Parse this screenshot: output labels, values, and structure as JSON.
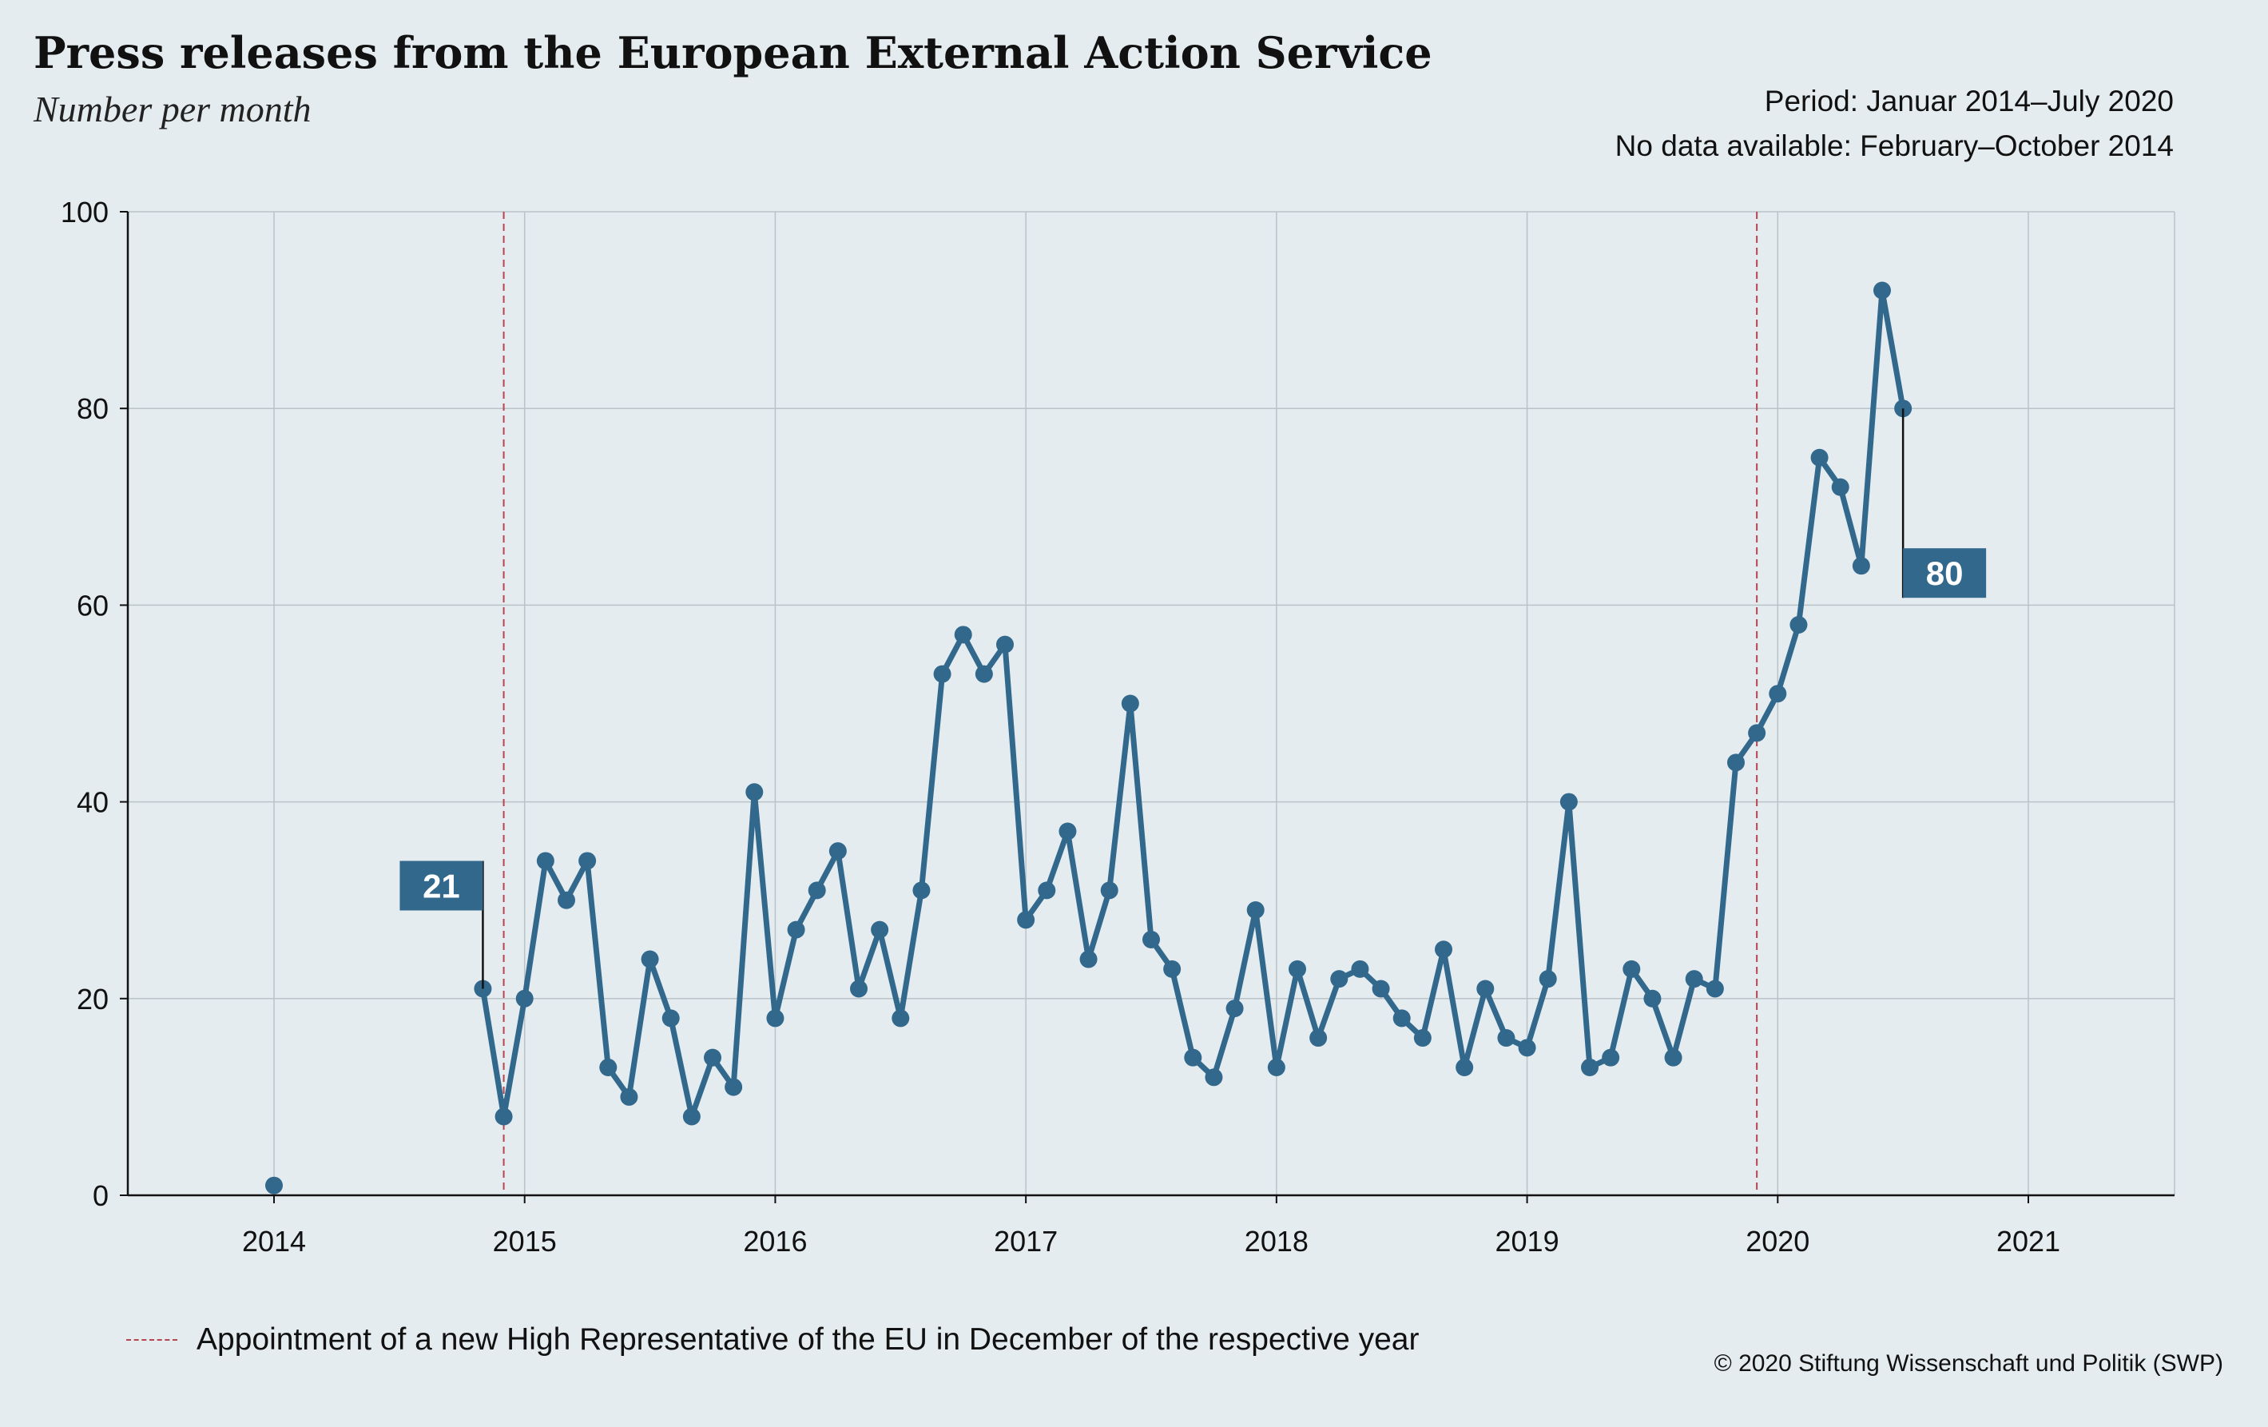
{
  "header": {
    "title": "Press releases from the European External Action Service",
    "subtitle": "Number per month",
    "note_period": "Period: Januar 2014–July 2020",
    "note_nodata": "No data available: February–October 2014"
  },
  "legend": {
    "label": "Appointment of a new High Representative of the EU in December of the respective year",
    "color": "#b5454f"
  },
  "footer": {
    "copyright": "© 2020 Stiftung Wissenschaft und Politik (SWP)"
  },
  "colors": {
    "line": "#33688d",
    "label_box": "#33688d",
    "grid": "#b9c3c8",
    "axis": "#111111",
    "background": "#e4ecef"
  },
  "chart_data": {
    "type": "line",
    "x_unit": "month",
    "xlim": [
      "2013-06",
      "2021-08"
    ],
    "ylim": [
      0,
      100
    ],
    "yticks": [
      0,
      20,
      40,
      60,
      80,
      100
    ],
    "xticks": [
      "2014",
      "2015",
      "2016",
      "2017",
      "2018",
      "2019",
      "2020",
      "2021"
    ],
    "grid": true,
    "series": [
      {
        "points": [
          {
            "x": "2014-01",
            "y": 1
          }
        ]
      },
      {
        "points": [
          {
            "x": "2014-11",
            "y": 21
          },
          {
            "x": "2014-12",
            "y": 8
          },
          {
            "x": "2015-01",
            "y": 20
          },
          {
            "x": "2015-02",
            "y": 34
          },
          {
            "x": "2015-03",
            "y": 30
          },
          {
            "x": "2015-04",
            "y": 34
          },
          {
            "x": "2015-05",
            "y": 13
          },
          {
            "x": "2015-06",
            "y": 10
          },
          {
            "x": "2015-07",
            "y": 24
          },
          {
            "x": "2015-08",
            "y": 18
          },
          {
            "x": "2015-09",
            "y": 8
          },
          {
            "x": "2015-10",
            "y": 14
          },
          {
            "x": "2015-11",
            "y": 11
          },
          {
            "x": "2015-12",
            "y": 41
          },
          {
            "x": "2016-01",
            "y": 18
          },
          {
            "x": "2016-02",
            "y": 27
          },
          {
            "x": "2016-03",
            "y": 31
          },
          {
            "x": "2016-04",
            "y": 35
          },
          {
            "x": "2016-05",
            "y": 21
          },
          {
            "x": "2016-06",
            "y": 27
          },
          {
            "x": "2016-07",
            "y": 18
          },
          {
            "x": "2016-08",
            "y": 31
          },
          {
            "x": "2016-09",
            "y": 53
          },
          {
            "x": "2016-10",
            "y": 57
          },
          {
            "x": "2016-11",
            "y": 53
          },
          {
            "x": "2016-12",
            "y": 56
          },
          {
            "x": "2017-01",
            "y": 28
          },
          {
            "x": "2017-02",
            "y": 31
          },
          {
            "x": "2017-03",
            "y": 37
          },
          {
            "x": "2017-04",
            "y": 24
          },
          {
            "x": "2017-05",
            "y": 31
          },
          {
            "x": "2017-06",
            "y": 50
          },
          {
            "x": "2017-07",
            "y": 26
          },
          {
            "x": "2017-08",
            "y": 23
          },
          {
            "x": "2017-09",
            "y": 14
          },
          {
            "x": "2017-10",
            "y": 12
          },
          {
            "x": "2017-11",
            "y": 19
          },
          {
            "x": "2017-12",
            "y": 29
          },
          {
            "x": "2018-01",
            "y": 13
          },
          {
            "x": "2018-02",
            "y": 23
          },
          {
            "x": "2018-03",
            "y": 16
          },
          {
            "x": "2018-04",
            "y": 22
          },
          {
            "x": "2018-05",
            "y": 23
          },
          {
            "x": "2018-06",
            "y": 21
          },
          {
            "x": "2018-07",
            "y": 18
          },
          {
            "x": "2018-08",
            "y": 16
          },
          {
            "x": "2018-09",
            "y": 25
          },
          {
            "x": "2018-10",
            "y": 13
          },
          {
            "x": "2018-11",
            "y": 21
          },
          {
            "x": "2018-12",
            "y": 16
          },
          {
            "x": "2019-01",
            "y": 15
          },
          {
            "x": "2019-02",
            "y": 22
          },
          {
            "x": "2019-03",
            "y": 40
          },
          {
            "x": "2019-04",
            "y": 13
          },
          {
            "x": "2019-05",
            "y": 14
          },
          {
            "x": "2019-06",
            "y": 23
          },
          {
            "x": "2019-07",
            "y": 20
          },
          {
            "x": "2019-08",
            "y": 14
          },
          {
            "x": "2019-09",
            "y": 22
          },
          {
            "x": "2019-10",
            "y": 21
          },
          {
            "x": "2019-11",
            "y": 44
          },
          {
            "x": "2019-12",
            "y": 47
          },
          {
            "x": "2020-01",
            "y": 51
          },
          {
            "x": "2020-02",
            "y": 58
          },
          {
            "x": "2020-03",
            "y": 75
          },
          {
            "x": "2020-04",
            "y": 72
          },
          {
            "x": "2020-05",
            "y": 64
          },
          {
            "x": "2020-06",
            "y": 92
          },
          {
            "x": "2020-07",
            "y": 80
          }
        ]
      }
    ],
    "reference_lines": [
      {
        "x": "2014-12"
      },
      {
        "x": "2019-12"
      }
    ],
    "annotations": [
      {
        "x": "2014-11",
        "y": 21,
        "label": "21",
        "side": "above-left"
      },
      {
        "x": "2020-07",
        "y": 80,
        "label": "80",
        "side": "below-right"
      }
    ]
  }
}
